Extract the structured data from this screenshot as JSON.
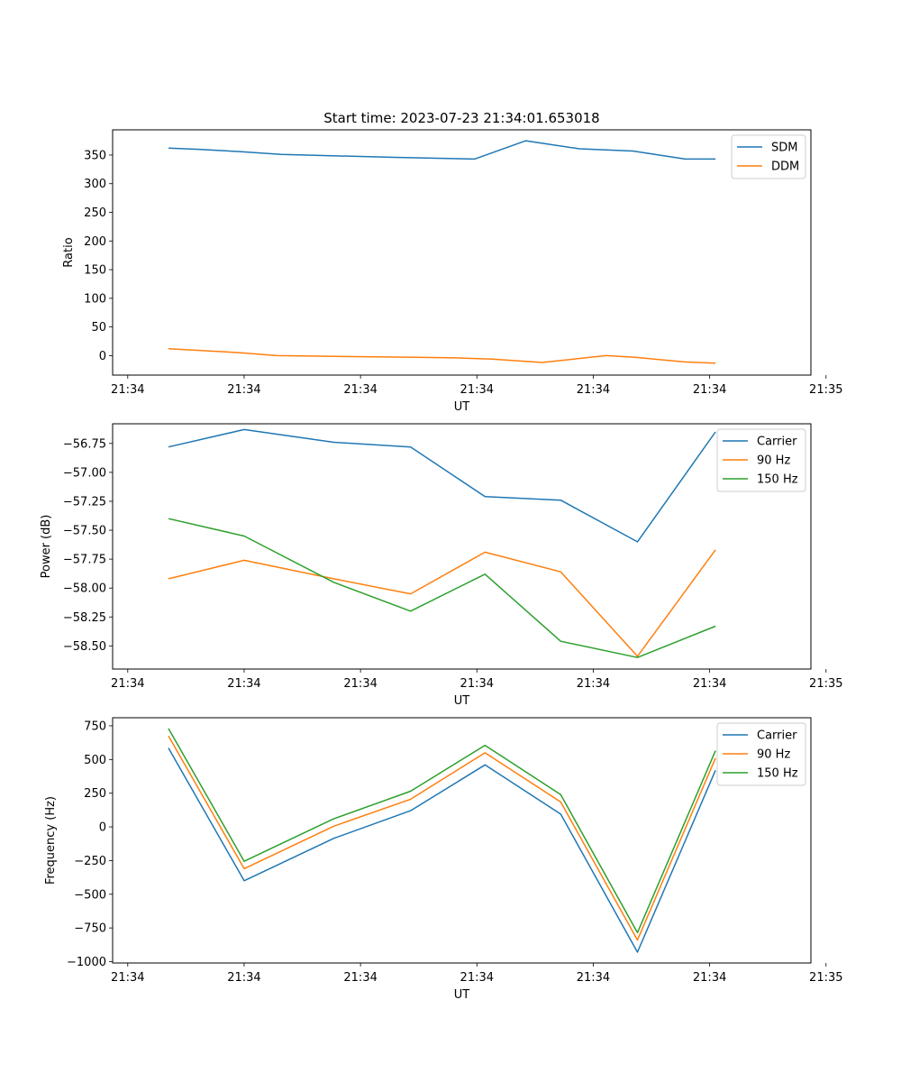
{
  "figure": {
    "title": "Start time: 2023-07-23 21:34:01.653018"
  },
  "chart_data": [
    {
      "type": "line",
      "xlabel": "UT",
      "ylabel": "Ratio",
      "x_ticks": [
        "21:34",
        "21:34",
        "21:34",
        "21:34",
        "21:34",
        "21:34",
        "21:35"
      ],
      "x_domain": [
        -0.13,
        5.87
      ],
      "x": [
        0.5,
        1.5,
        2.5,
        3.5,
        4.5,
        5.5
      ],
      "ylim": [
        -34,
        394
      ],
      "y_ticks": [
        0,
        50,
        100,
        150,
        200,
        250,
        300,
        350
      ],
      "y_tick_labels": [
        "0",
        "50",
        "100",
        "150",
        "200",
        "250",
        "300",
        "350"
      ],
      "legend_position": "top-right",
      "series": [
        {
          "name": "SDM",
          "color": "#1f77b4",
          "x": [
            0.35,
            0.61,
            0.96,
            1.32,
            2.29,
            2.98,
            3.42,
            3.88,
            4.34,
            4.79,
            5.05
          ],
          "values": [
            362,
            360,
            356,
            351,
            346,
            343,
            375,
            361,
            357,
            343,
            343
          ]
        },
        {
          "name": "DDM",
          "color": "#ff7f0e",
          "x": [
            0.35,
            0.97,
            1.28,
            1.64,
            2.47,
            2.82,
            3.13,
            3.56,
            4.11,
            4.36,
            4.78,
            5.05
          ],
          "values": [
            12,
            5,
            0,
            -1,
            -3,
            -4,
            -6,
            -12,
            0,
            -3,
            -11,
            -13
          ]
        }
      ]
    },
    {
      "type": "line",
      "xlabel": "UT",
      "ylabel": "Power (dB)",
      "x_ticks": [
        "21:34",
        "21:34",
        "21:34",
        "21:34",
        "21:34",
        "21:34",
        "21:35"
      ],
      "x_domain": [
        -0.13,
        5.87
      ],
      "x": [
        0.5,
        1.5,
        2.5,
        3.5,
        4.5,
        5.5
      ],
      "ylim": [
        -58.7,
        -56.58
      ],
      "y_ticks": [
        -56.75,
        -57.0,
        -57.25,
        -57.5,
        -57.75,
        -58.0,
        -58.25,
        -58.5
      ],
      "y_tick_labels": [
        "−56.75",
        "−57.00",
        "−57.25",
        "−57.50",
        "−57.75",
        "−58.00",
        "−58.25",
        "−58.50"
      ],
      "legend_position": "top-right",
      "series": [
        {
          "name": "Carrier",
          "color": "#1f77b4",
          "x": [
            0.35,
            1.0,
            1.77,
            2.43,
            3.07,
            3.72,
            4.38,
            5.05
          ],
          "values": [
            -56.78,
            -56.63,
            -56.74,
            -56.78,
            -57.21,
            -57.24,
            -57.6,
            -56.65
          ]
        },
        {
          "name": "90 Hz",
          "color": "#ff7f0e",
          "x": [
            0.35,
            1.0,
            1.77,
            2.43,
            3.07,
            3.72,
            4.38,
            5.05
          ],
          "values": [
            -57.92,
            -57.76,
            -57.92,
            -58.05,
            -57.69,
            -57.86,
            -58.59,
            -57.67
          ]
        },
        {
          "name": "150 Hz",
          "color": "#2ca02c",
          "x": [
            0.35,
            1.0,
            1.77,
            2.43,
            3.07,
            3.72,
            4.38,
            5.05
          ],
          "values": [
            -57.4,
            -57.55,
            -57.95,
            -58.2,
            -57.88,
            -58.46,
            -58.6,
            -58.33
          ]
        }
      ]
    },
    {
      "type": "line",
      "xlabel": "UT",
      "ylabel": "Frequency (Hz)",
      "x_ticks": [
        "21:34",
        "21:34",
        "21:34",
        "21:34",
        "21:34",
        "21:34",
        "21:35"
      ],
      "x_domain": [
        -0.13,
        5.87
      ],
      "x": [
        0.5,
        1.5,
        2.5,
        3.5,
        4.5,
        5.5
      ],
      "ylim": [
        -1010,
        810
      ],
      "y_ticks": [
        750,
        500,
        250,
        0,
        -250,
        -500,
        -750,
        -1000
      ],
      "y_tick_labels": [
        "750",
        "500",
        "250",
        "0",
        "−250",
        "−500",
        "−750",
        "−1000"
      ],
      "legend_position": "top-right",
      "series": [
        {
          "name": "Carrier",
          "color": "#1f77b4",
          "x": [
            0.35,
            1.0,
            1.77,
            2.43,
            3.07,
            3.72,
            4.38,
            5.05
          ],
          "values": [
            585,
            -400,
            -85,
            120,
            460,
            95,
            -930,
            420
          ]
        },
        {
          "name": "90 Hz",
          "color": "#ff7f0e",
          "x": [
            0.35,
            1.0,
            1.77,
            2.43,
            3.07,
            3.72,
            4.38,
            5.05
          ],
          "values": [
            675,
            -310,
            5,
            205,
            550,
            185,
            -840,
            510
          ]
        },
        {
          "name": "150 Hz",
          "color": "#2ca02c",
          "x": [
            0.35,
            1.0,
            1.77,
            2.43,
            3.07,
            3.72,
            4.38,
            5.05
          ],
          "values": [
            730,
            -255,
            60,
            265,
            605,
            240,
            -785,
            565
          ]
        }
      ]
    }
  ]
}
